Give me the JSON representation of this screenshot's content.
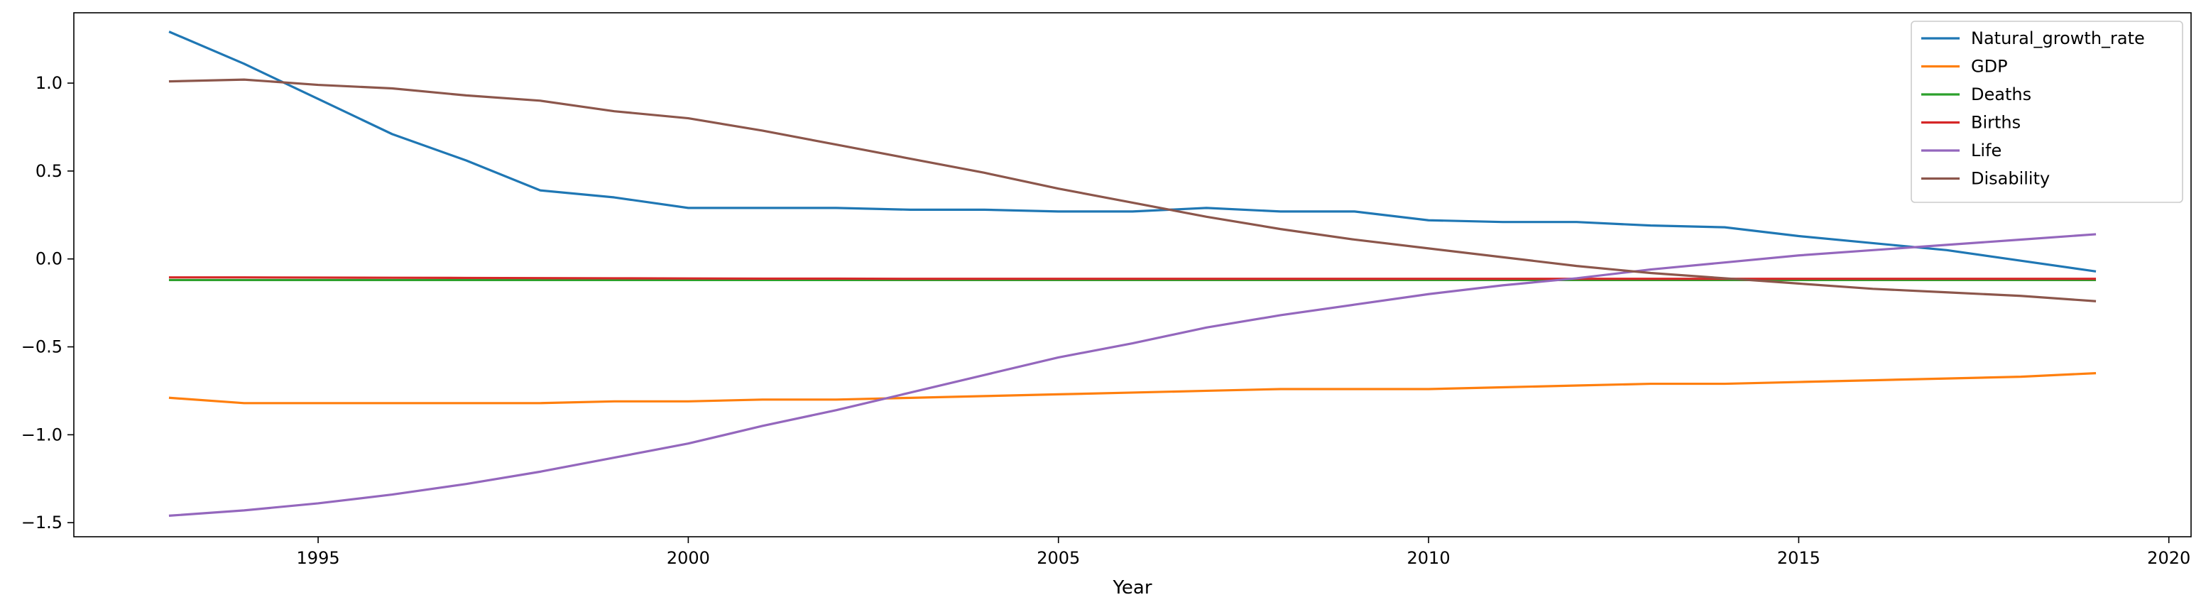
{
  "chart_data": {
    "type": "line",
    "title": "",
    "xlabel": "Year",
    "ylabel": "",
    "xlim": [
      1991.7,
      2020.3
    ],
    "ylim": [
      -1.58,
      1.4
    ],
    "xticks": [
      1995,
      2000,
      2005,
      2010,
      2015,
      2020
    ],
    "xtick_labels": [
      "1995",
      "2000",
      "2005",
      "2010",
      "2015",
      "2020"
    ],
    "yticks": [
      -1.5,
      -1.0,
      -0.5,
      0.0,
      0.5,
      1.0
    ],
    "ytick_labels": [
      "−1.5",
      "−1.0",
      "−0.5",
      "0.0",
      "0.5",
      "1.0"
    ],
    "grid": false,
    "legend_position": "top-right",
    "x": [
      1993,
      1994,
      1995,
      1996,
      1997,
      1998,
      1999,
      2000,
      2001,
      2002,
      2003,
      2004,
      2005,
      2006,
      2007,
      2008,
      2009,
      2010,
      2011,
      2012,
      2013,
      2014,
      2015,
      2016,
      2017,
      2018,
      2019
    ],
    "series": [
      {
        "name": "Natural_growth_rate",
        "color": "#1f77b4",
        "values": [
          1.29,
          1.11,
          0.91,
          0.71,
          0.56,
          0.39,
          0.35,
          0.29,
          0.29,
          0.29,
          0.28,
          0.28,
          0.27,
          0.27,
          0.29,
          0.27,
          0.27,
          0.22,
          0.21,
          0.21,
          0.19,
          0.18,
          0.13,
          0.09,
          0.05,
          -0.01,
          -0.07
        ]
      },
      {
        "name": "GDP",
        "color": "#ff7f0e",
        "values": [
          -0.79,
          -0.82,
          -0.82,
          -0.82,
          -0.82,
          -0.82,
          -0.81,
          -0.81,
          -0.8,
          -0.8,
          -0.79,
          -0.78,
          -0.77,
          -0.76,
          -0.75,
          -0.74,
          -0.74,
          -0.74,
          -0.73,
          -0.72,
          -0.71,
          -0.71,
          -0.7,
          -0.69,
          -0.68,
          -0.67,
          -0.65
        ]
      },
      {
        "name": "Deaths",
        "color": "#2ca02c",
        "values": [
          -0.12,
          -0.12,
          -0.12,
          -0.12,
          -0.12,
          -0.12,
          -0.12,
          -0.12,
          -0.12,
          -0.12,
          -0.12,
          -0.12,
          -0.12,
          -0.12,
          -0.12,
          -0.12,
          -0.12,
          -0.12,
          -0.12,
          -0.12,
          -0.12,
          -0.12,
          -0.12,
          -0.12,
          -0.12,
          -0.12,
          -0.12
        ]
      },
      {
        "name": "Births",
        "color": "#d62728",
        "values": [
          -0.105,
          -0.105,
          -0.106,
          -0.107,
          -0.108,
          -0.109,
          -0.11,
          -0.111,
          -0.112,
          -0.112,
          -0.113,
          -0.113,
          -0.113,
          -0.113,
          -0.113,
          -0.113,
          -0.113,
          -0.113,
          -0.113,
          -0.113,
          -0.113,
          -0.113,
          -0.113,
          -0.113,
          -0.113,
          -0.113,
          -0.113
        ]
      },
      {
        "name": "Life",
        "color": "#9467bd",
        "values": [
          -1.46,
          -1.43,
          -1.39,
          -1.34,
          -1.28,
          -1.21,
          -1.13,
          -1.05,
          -0.95,
          -0.86,
          -0.76,
          -0.66,
          -0.56,
          -0.48,
          -0.39,
          -0.32,
          -0.26,
          -0.2,
          -0.15,
          -0.11,
          -0.06,
          -0.02,
          0.02,
          0.05,
          0.08,
          0.11,
          0.14
        ]
      },
      {
        "name": "Disability",
        "color": "#8c564b",
        "values": [
          1.01,
          1.02,
          0.99,
          0.97,
          0.93,
          0.9,
          0.84,
          0.8,
          0.73,
          0.65,
          0.57,
          0.49,
          0.4,
          0.32,
          0.24,
          0.17,
          0.11,
          0.06,
          0.01,
          -0.04,
          -0.08,
          -0.11,
          -0.14,
          -0.17,
          -0.19,
          -0.21,
          -0.24
        ]
      }
    ]
  }
}
